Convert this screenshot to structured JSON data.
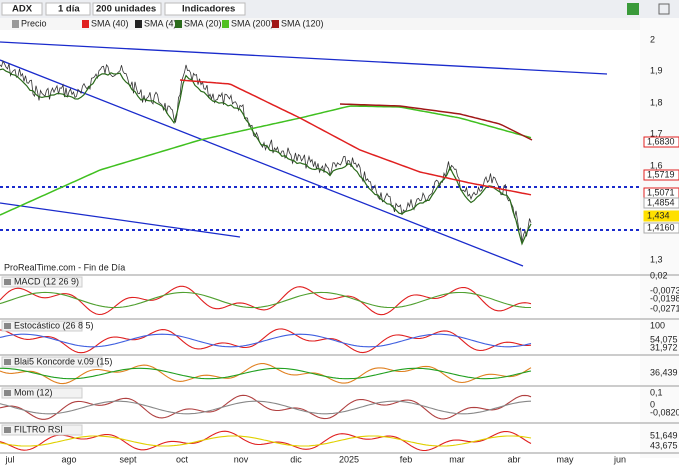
{
  "toolbar": {
    "symbol": "ADX",
    "period": "1 día",
    "units": "200 unidades",
    "indicators": "Indicadores"
  },
  "legend": [
    "Precio",
    "SMA (40)",
    "SMA (4)",
    "SMA (20)",
    "SMA (200)",
    "SMA (120)"
  ],
  "price_axis": [
    "2",
    "1,9",
    "1,8",
    "1,7",
    "1,6",
    "1,3"
  ],
  "price_tags": [
    "1,6830",
    "1,5719",
    "1,5071",
    "1,4854",
    "1,434",
    "1,4160"
  ],
  "footer_note": "ProRealTime.com - Fin de Día",
  "panels": [
    {
      "title": "MACD (12 26 9)",
      "labels": [
        "0,02",
        "-0,0073",
        "-0,0198",
        "-0,0271"
      ]
    },
    {
      "title": "Estocástico (26 8 5)",
      "labels": [
        "100",
        "54,075",
        "31,972"
      ]
    },
    {
      "title": "Blai5 Koncorde v.09 (15)",
      "labels": [
        "36,439"
      ]
    },
    {
      "title": "Mom (12)",
      "labels": [
        "0,1",
        "0",
        "-0,0820"
      ]
    },
    {
      "title": "FILTRO RSI",
      "labels": [
        "51,649",
        "43,675"
      ]
    }
  ],
  "x_axis": [
    "jul",
    "ago",
    "sept",
    "oct",
    "nov",
    "dic",
    "2025",
    "feb",
    "mar",
    "abr",
    "may",
    "jun"
  ]
}
